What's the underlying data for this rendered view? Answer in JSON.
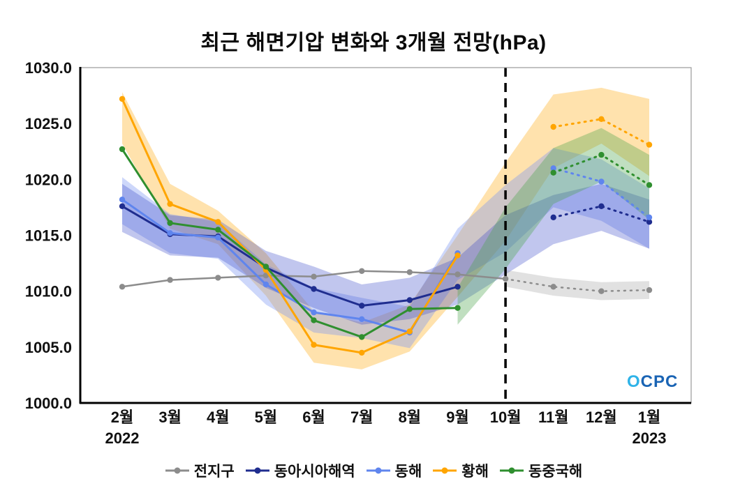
{
  "title": "최근 해면기압 변화와 3개월 전망(hPa)",
  "logo": {
    "o": "O",
    "cpc": "CPC"
  },
  "chart_data": {
    "type": "line",
    "title": "최근 해면기압 변화와 3개월 전망(hPa)",
    "ylabel": "",
    "ylim": [
      1000,
      1030
    ],
    "yticks": [
      1000,
      1005,
      1010,
      1015,
      1020,
      1025,
      1030
    ],
    "x_labels": [
      "2월",
      "3월",
      "4월",
      "5월",
      "6월",
      "7월",
      "8월",
      "9월",
      "10월",
      "11월",
      "12월",
      "1월"
    ],
    "x_sub_labels": {
      "first": "2022",
      "last": "2023"
    },
    "divider_index": 8,
    "legend_position": "bottom",
    "grid": false,
    "series": [
      {
        "id": "global",
        "name": "전지구",
        "color": "#8c8c8c",
        "width": 2.5,
        "connect": true,
        "observed": [
          1010.4,
          1011.0,
          1011.2,
          1011.4,
          1011.3,
          1011.8,
          1011.7,
          1011.5,
          1011.1
        ],
        "forecast": [
          1010.4,
          1010.0,
          1010.1
        ]
      },
      {
        "id": "east-asia-seas",
        "name": "동아시아해역",
        "color": "#1f2d8f",
        "width": 3,
        "connect": false,
        "observed": [
          1017.6,
          1015.1,
          1014.9,
          1012.1,
          1010.2,
          1008.7,
          1009.2,
          1010.4
        ],
        "forecast": [
          1016.6,
          1017.6,
          1016.2
        ]
      },
      {
        "id": "east-sea",
        "name": "동해",
        "color": "#5f85ee",
        "width": 3,
        "connect": false,
        "observed": [
          1018.2,
          1015.2,
          1014.8,
          1010.6,
          1008.1,
          1007.5,
          1006.3,
          1013.4
        ],
        "forecast": [
          1021.0,
          1019.8,
          1016.6
        ]
      },
      {
        "id": "yellow-sea",
        "name": "황해",
        "color": "#ffa500",
        "width": 3,
        "connect": false,
        "observed": [
          1027.2,
          1017.8,
          1016.2,
          1011.9,
          1005.2,
          1004.5,
          1006.4,
          1013.2
        ],
        "forecast": [
          1024.7,
          1025.4,
          1023.1
        ]
      },
      {
        "id": "east-china-sea",
        "name": "동중국해",
        "color": "#2f8f2f",
        "width": 3,
        "connect": false,
        "observed": [
          1022.7,
          1016.1,
          1015.5,
          1012.2,
          1007.4,
          1005.9,
          1008.4,
          1008.5
        ],
        "forecast": [
          1020.6,
          1022.2,
          1019.5
        ]
      }
    ],
    "bands": [
      {
        "id": "yellow-sea-range",
        "color": "#ffa500",
        "opacity": 0.32,
        "points": [
          [
            0,
            1023.2,
            1027.8
          ],
          [
            1,
            1015.6,
            1019.6
          ],
          [
            2,
            1014.2,
            1017.2
          ],
          [
            3,
            1009.6,
            1013.4
          ],
          [
            4,
            1003.6,
            1008.2
          ],
          [
            5,
            1003.0,
            1007.2
          ],
          [
            6,
            1004.6,
            1008.8
          ],
          [
            7,
            1009.5,
            1015.0
          ],
          [
            8,
            1014.5,
            1021.5
          ],
          [
            9,
            1021.0,
            1027.6
          ],
          [
            10,
            1023.2,
            1028.2
          ],
          [
            11,
            1020.3,
            1027.2
          ]
        ]
      },
      {
        "id": "east-sea-range",
        "color": "#7b96f2",
        "opacity": 0.38,
        "points": [
          [
            0,
            1016.0,
            1020.2
          ],
          [
            1,
            1013.4,
            1016.9
          ],
          [
            2,
            1012.9,
            1016.2
          ],
          [
            3,
            1008.8,
            1012.4
          ],
          [
            4,
            1006.3,
            1010.3
          ],
          [
            5,
            1005.8,
            1009.4
          ],
          [
            6,
            1004.9,
            1008.6
          ],
          [
            7,
            1011.0,
            1015.6
          ],
          [
            8,
            1013.5,
            1019.5
          ],
          [
            9,
            1017.5,
            1022.8
          ],
          [
            10,
            1016.3,
            1021.8
          ],
          [
            11,
            1013.8,
            1019.2
          ]
        ]
      },
      {
        "id": "east-asia-range",
        "color": "#3242c8",
        "opacity": 0.3,
        "points": [
          [
            0,
            1015.3,
            1019.6
          ],
          [
            1,
            1013.2,
            1016.8
          ],
          [
            2,
            1013.0,
            1016.4
          ],
          [
            3,
            1010.3,
            1013.6
          ],
          [
            4,
            1008.5,
            1012.2
          ],
          [
            5,
            1007.0,
            1010.6
          ],
          [
            6,
            1007.5,
            1011.2
          ],
          [
            7,
            1008.8,
            1013.0
          ],
          [
            8,
            1011.5,
            1016.8
          ],
          [
            9,
            1014.2,
            1018.6
          ],
          [
            10,
            1015.4,
            1019.6
          ],
          [
            11,
            1013.8,
            1018.2
          ]
        ]
      },
      {
        "id": "east-china-sea-range",
        "color": "#4aa34a",
        "opacity": 0.35,
        "points": [
          [
            7,
            1007.0,
            1010.3
          ],
          [
            8,
            1012.0,
            1017.5
          ],
          [
            9,
            1017.8,
            1022.8
          ],
          [
            10,
            1019.8,
            1024.6
          ],
          [
            11,
            1016.4,
            1022.2
          ]
        ]
      },
      {
        "id": "global-range",
        "color": "#9a9a9a",
        "opacity": 0.3,
        "points": [
          [
            8,
            1010.4,
            1011.9
          ],
          [
            9,
            1009.6,
            1011.2
          ],
          [
            10,
            1009.2,
            1010.8
          ],
          [
            11,
            1009.3,
            1010.9
          ]
        ]
      }
    ]
  }
}
